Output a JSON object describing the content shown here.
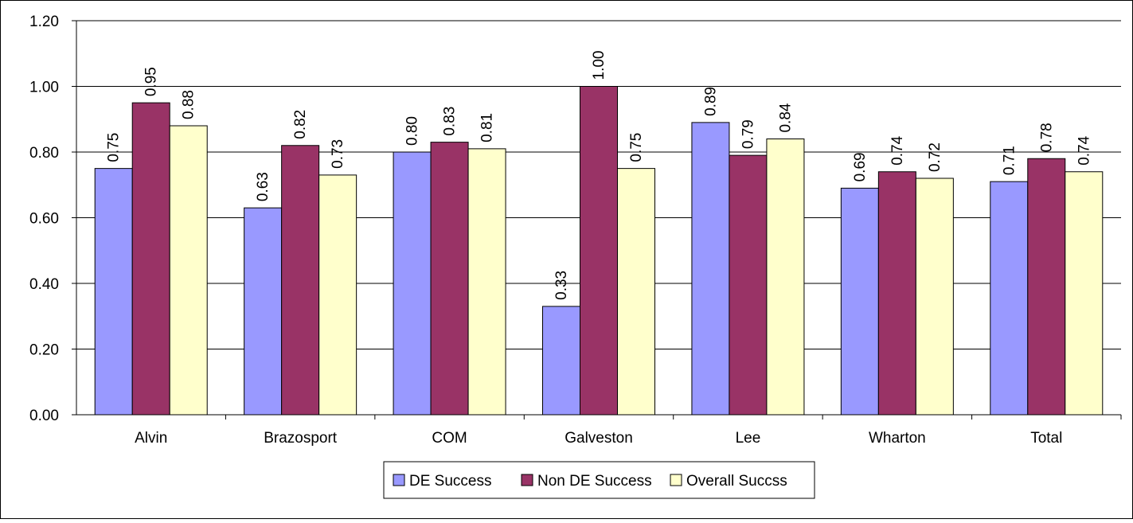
{
  "chart_data": {
    "type": "bar",
    "title": "",
    "xlabel": "",
    "ylabel": "",
    "categories": [
      "Alvin",
      "Brazosport",
      "COM",
      "Galveston",
      "Lee",
      "Wharton",
      "Total"
    ],
    "series": [
      {
        "name": "DE Success",
        "color": "#9999ff",
        "values": [
          0.75,
          0.63,
          0.8,
          0.33,
          0.89,
          0.69,
          0.71
        ]
      },
      {
        "name": "Non DE Success",
        "color": "#993366",
        "values": [
          0.95,
          0.82,
          0.83,
          1.0,
          0.79,
          0.74,
          0.78
        ]
      },
      {
        "name": "Overall Succss",
        "color": "#ffffcc",
        "values": [
          0.88,
          0.73,
          0.81,
          0.75,
          0.84,
          0.72,
          0.74
        ]
      }
    ],
    "data_labels": [
      [
        "0.75",
        "0.63",
        "0.80",
        "0.33",
        "0.89",
        "0.69",
        "0.71"
      ],
      [
        "0.95",
        "0.82",
        "0.83",
        "1.00",
        "0.79",
        "0.74",
        "0.78"
      ],
      [
        "0.88",
        "0.73",
        "0.81",
        "0.75",
        "0.84",
        "0.72",
        "0.74"
      ]
    ],
    "ylim": [
      0,
      1.2
    ],
    "yticks": [
      "0.00",
      "0.20",
      "0.40",
      "0.60",
      "0.80",
      "1.00",
      "1.20"
    ],
    "grid": true,
    "legend_position": "bottom"
  }
}
